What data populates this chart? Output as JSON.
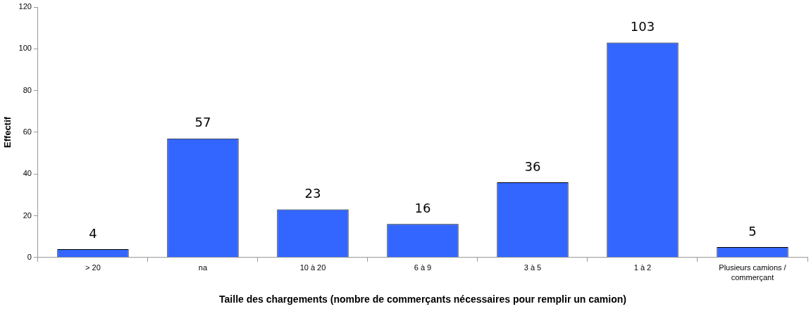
{
  "chart_data": {
    "type": "bar",
    "xlabel": "Taille des chargements (nombre de commerçants nécessaires pour remplir un camion)",
    "ylabel": "Effectif",
    "categories": [
      "> 20",
      "na",
      "10 à 20",
      "6 à 9",
      "3 à 5",
      "1 à 2",
      "Plusieurs camions / commerçant"
    ],
    "values": [
      4,
      57,
      23,
      16,
      36,
      103,
      5
    ],
    "color": "#3366ff",
    "ylim": [
      0,
      120
    ],
    "yticks": [
      0,
      20,
      40,
      60,
      80,
      100,
      120
    ],
    "grid": false,
    "legend": false,
    "data_labels": true
  }
}
